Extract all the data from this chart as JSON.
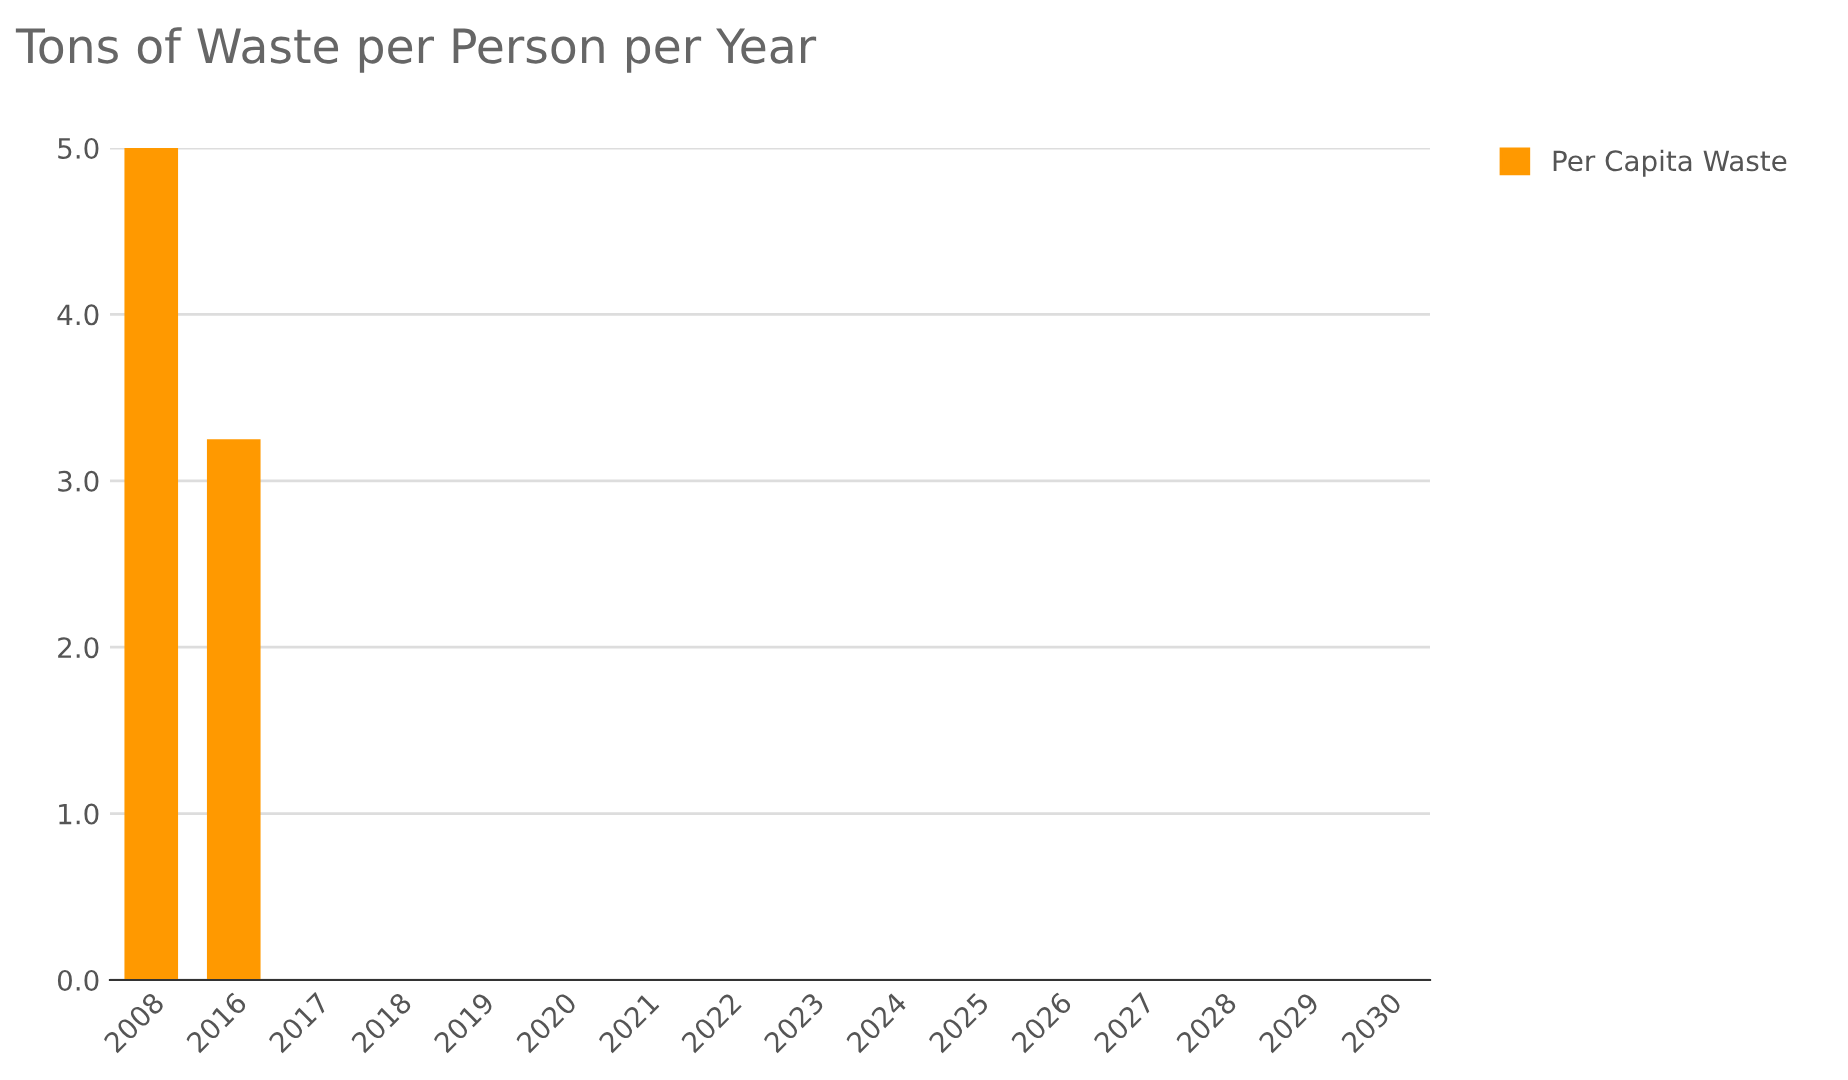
{
  "chart_data": {
    "type": "bar",
    "title": "Tons of Waste per Person per Year",
    "categories": [
      "2008",
      "2016",
      "2017",
      "2018",
      "2019",
      "2020",
      "2021",
      "2022",
      "2023",
      "2024",
      "2025",
      "2026",
      "2027",
      "2028",
      "2029",
      "2030"
    ],
    "series": [
      {
        "name": "Per Capita Waste",
        "color": "#ff9900",
        "values": [
          5.0,
          3.25,
          null,
          null,
          null,
          null,
          null,
          null,
          null,
          null,
          null,
          null,
          null,
          null,
          null,
          null
        ]
      }
    ],
    "ylim": [
      0,
      5
    ],
    "yticks": [
      {
        "value": 0,
        "label": "0.0"
      },
      {
        "value": 1,
        "label": "1.0"
      },
      {
        "value": 2,
        "label": "2.0"
      },
      {
        "value": 3,
        "label": "3.0"
      },
      {
        "value": 4,
        "label": "4.0"
      },
      {
        "value": 5,
        "label": "5.0"
      }
    ],
    "grid": "y",
    "legend": "top right"
  }
}
